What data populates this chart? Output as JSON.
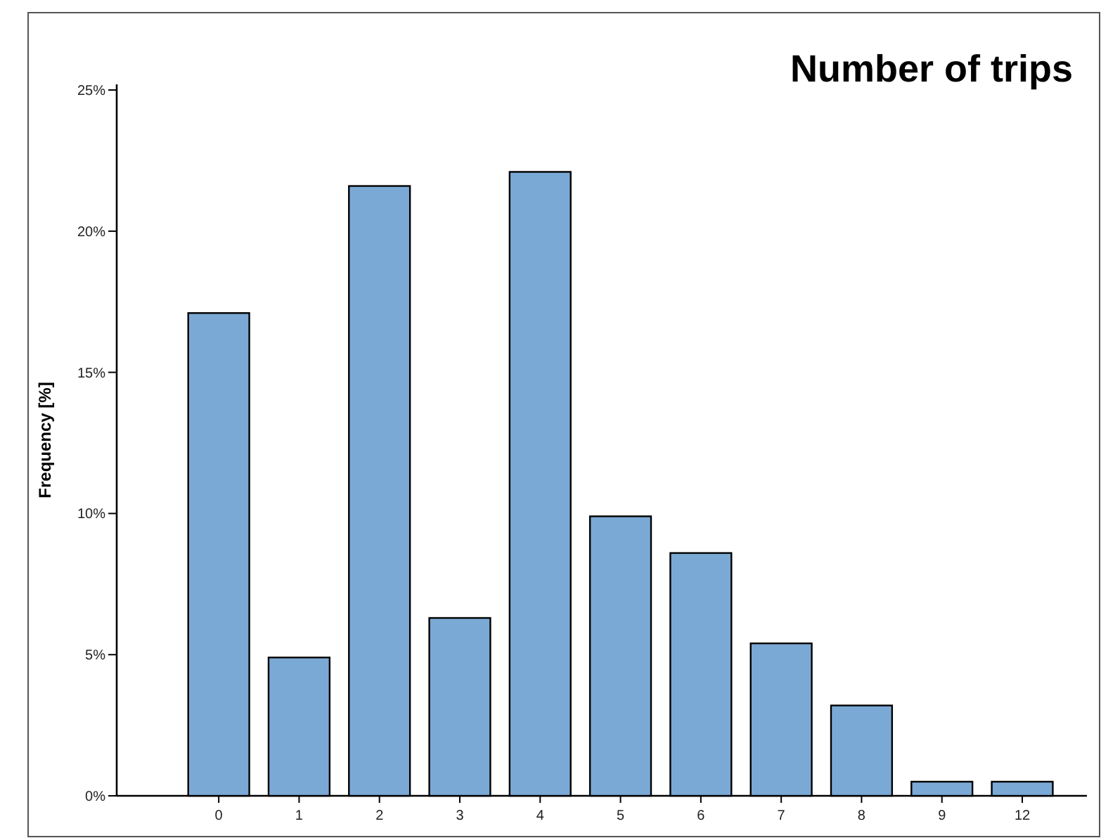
{
  "chart_data": {
    "type": "bar",
    "title": "Number of trips",
    "ylabel": "Frequency [%]",
    "categories": [
      "0",
      "1",
      "2",
      "3",
      "4",
      "5",
      "6",
      "7",
      "8",
      "9",
      "12"
    ],
    "values": [
      17.1,
      4.9,
      21.6,
      6.3,
      22.1,
      9.9,
      8.6,
      5.4,
      3.2,
      0.5,
      0.5
    ],
    "color": "#7ba9d6",
    "ylim": [
      0,
      25.2
    ],
    "yticks": [
      {
        "value": 0,
        "label": "0%"
      },
      {
        "value": 5,
        "label": "5%"
      },
      {
        "value": 10,
        "label": "10%"
      },
      {
        "value": 15,
        "label": "15%"
      },
      {
        "value": 20,
        "label": "20%"
      },
      {
        "value": 25,
        "label": "25%"
      }
    ],
    "grid": false
  }
}
